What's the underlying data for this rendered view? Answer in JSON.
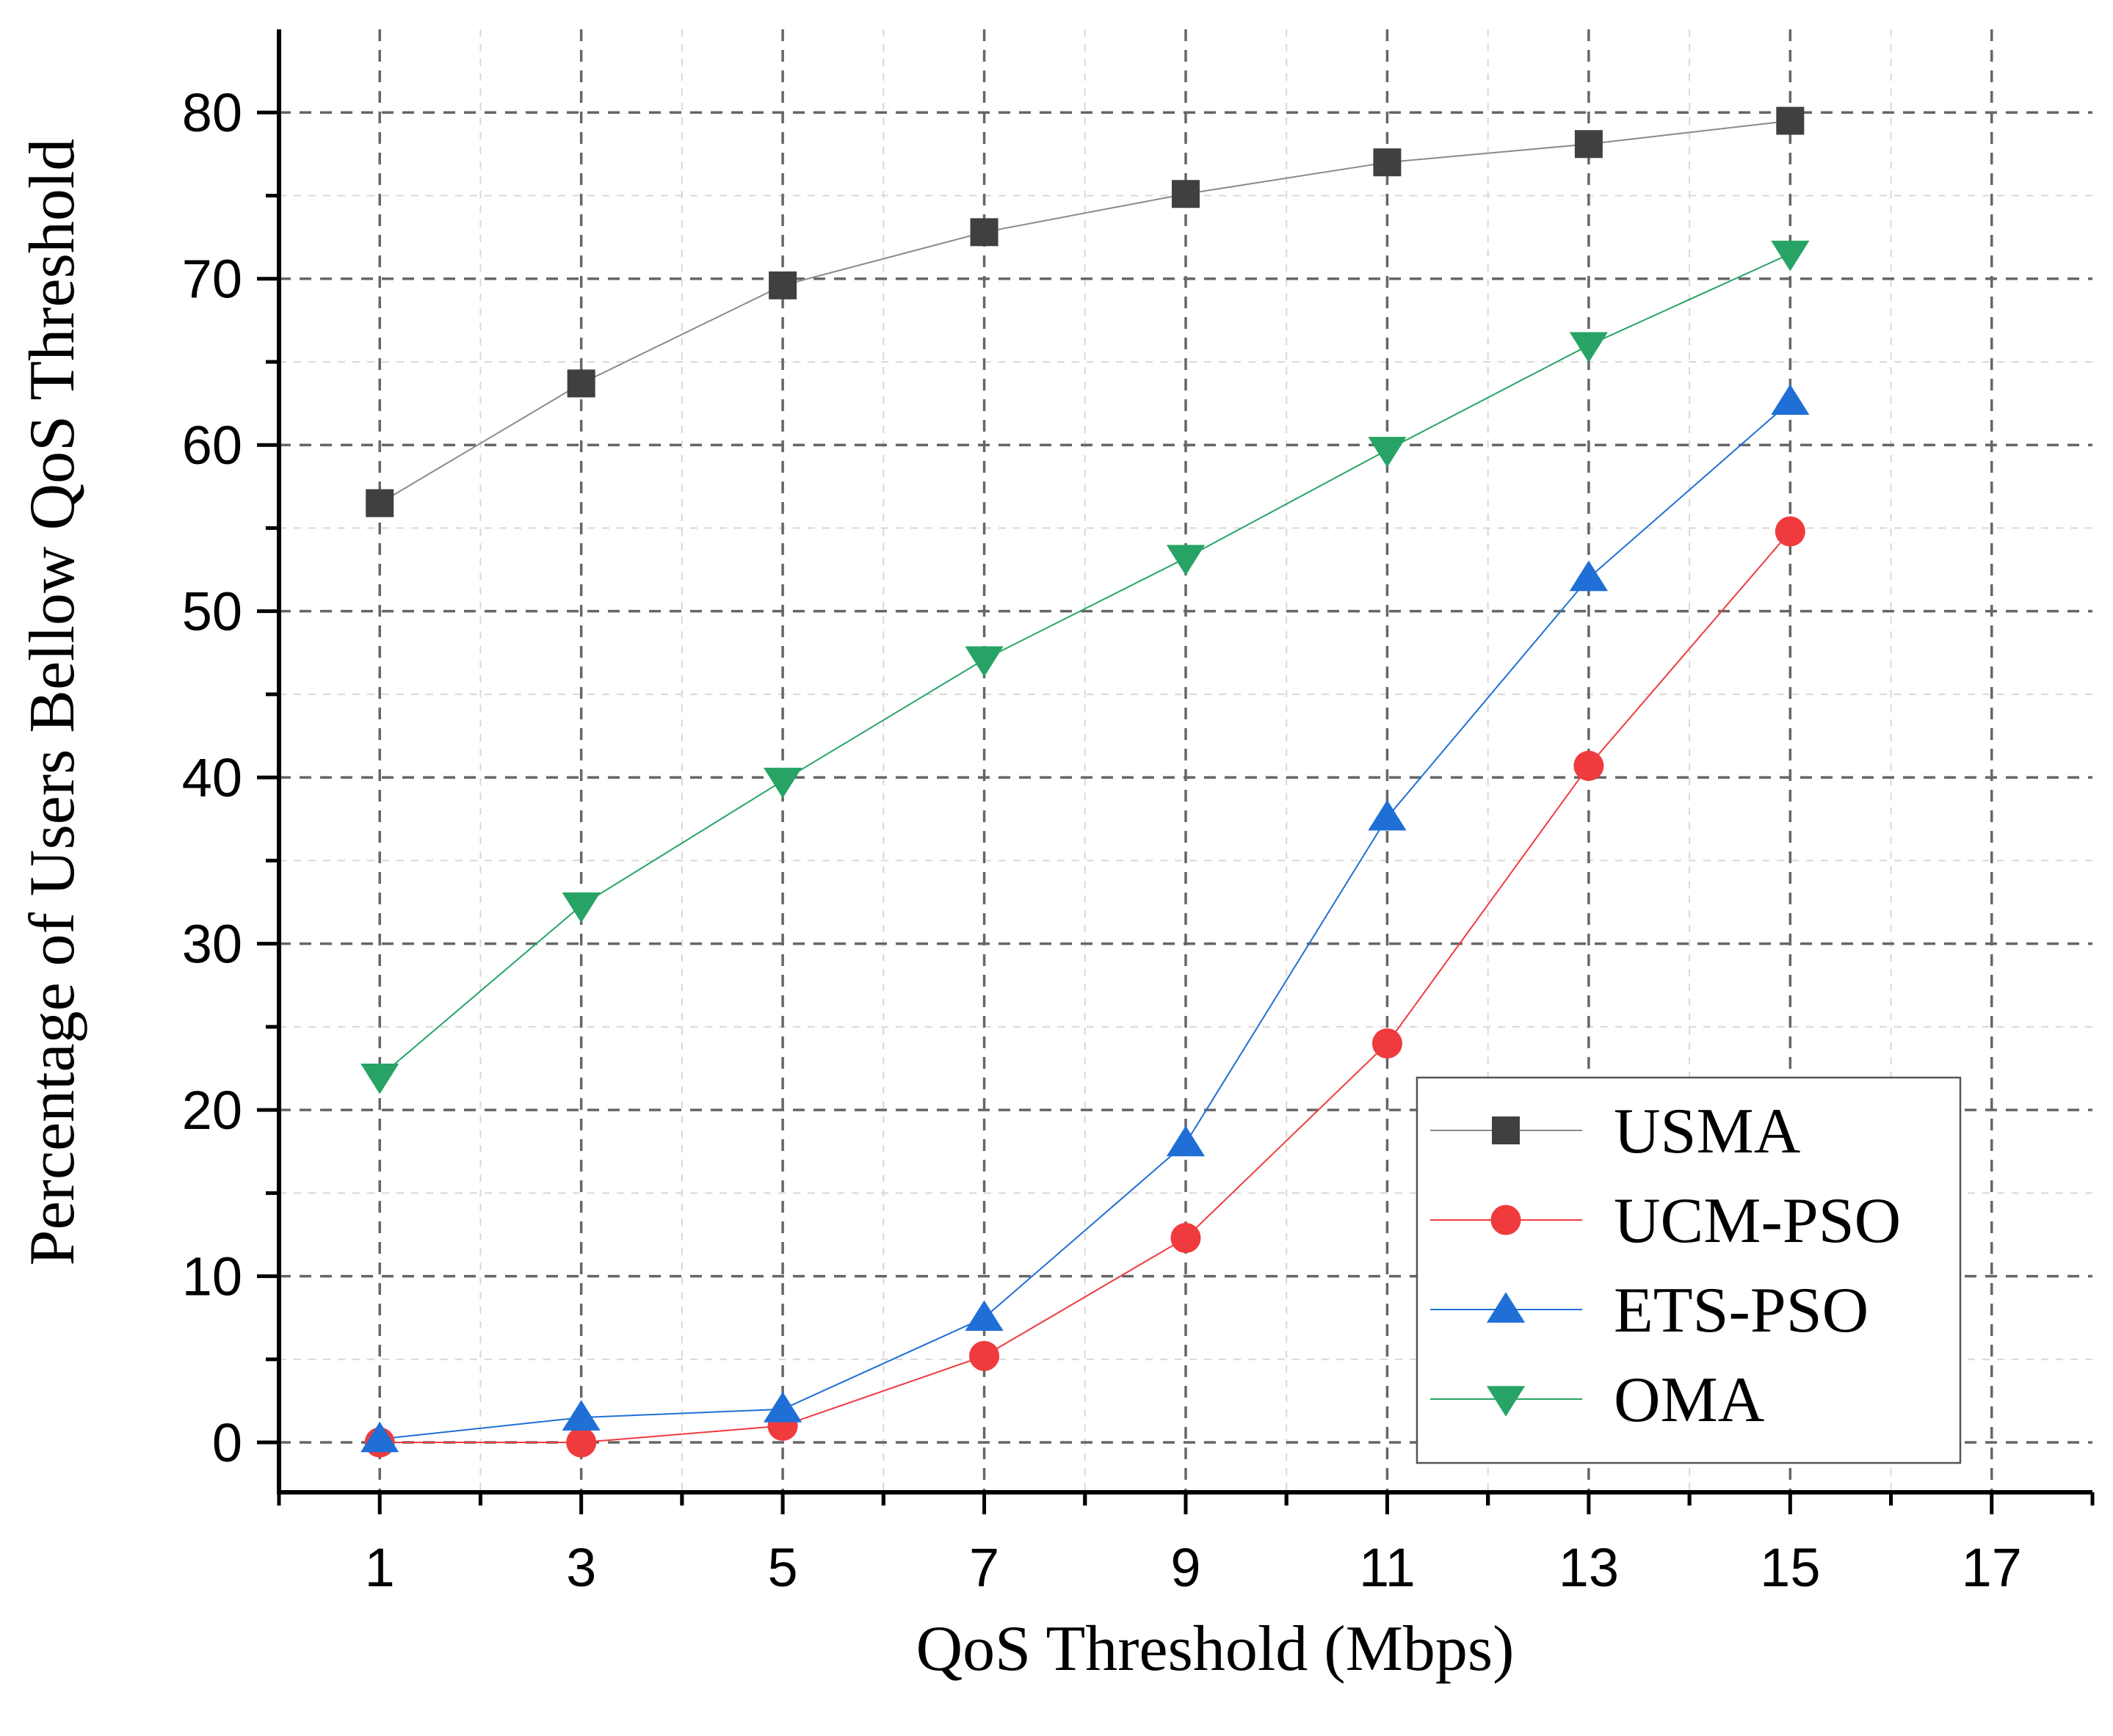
{
  "chart_data": {
    "type": "line",
    "title": "",
    "xlabel": "QoS Threshold (Mbps)",
    "ylabel": "Percentage of Users Bellow QoS Threshold",
    "xlim": [
      0,
      18
    ],
    "ylim": [
      -3,
      85
    ],
    "x_ticks": [
      1,
      3,
      5,
      7,
      9,
      11,
      13,
      15,
      17
    ],
    "x_tick_labels": [
      "1",
      "3",
      "5",
      "7",
      "9",
      "11",
      "13",
      "15",
      "17"
    ],
    "y_ticks": [
      0,
      10,
      20,
      30,
      40,
      50,
      60,
      70,
      80
    ],
    "y_tick_labels": [
      "0",
      "10",
      "20",
      "30",
      "40",
      "50",
      "60",
      "70",
      "80"
    ],
    "grid": true,
    "legend_position": "bottom-right",
    "x": [
      1,
      3,
      5,
      7,
      9,
      11,
      13,
      15
    ],
    "series": [
      {
        "name": "USMA",
        "marker": "square",
        "color": "#404040",
        "line_color": "#8a8a8a",
        "values": [
          56.5,
          63.7,
          69.6,
          72.8,
          75.1,
          77.0,
          78.1,
          79.5
        ]
      },
      {
        "name": "UCM-PSO",
        "marker": "circle",
        "color": "#ef3b3e",
        "line_color": "#ef3b3e",
        "values": [
          0.0,
          0.0,
          1.0,
          5.2,
          12.3,
          24.0,
          40.7,
          54.8
        ]
      },
      {
        "name": "ETS-PSO",
        "marker": "triangle-up",
        "color": "#1f6fd6",
        "line_color": "#1f6fd6",
        "values": [
          0.2,
          1.5,
          2.0,
          7.5,
          18.0,
          37.6,
          52.0,
          62.6
        ]
      },
      {
        "name": "OMA",
        "marker": "triangle-down",
        "color": "#27a465",
        "line_color": "#27a465",
        "values": [
          22.0,
          32.3,
          39.8,
          47.1,
          53.2,
          59.7,
          66.0,
          71.5
        ]
      }
    ]
  }
}
